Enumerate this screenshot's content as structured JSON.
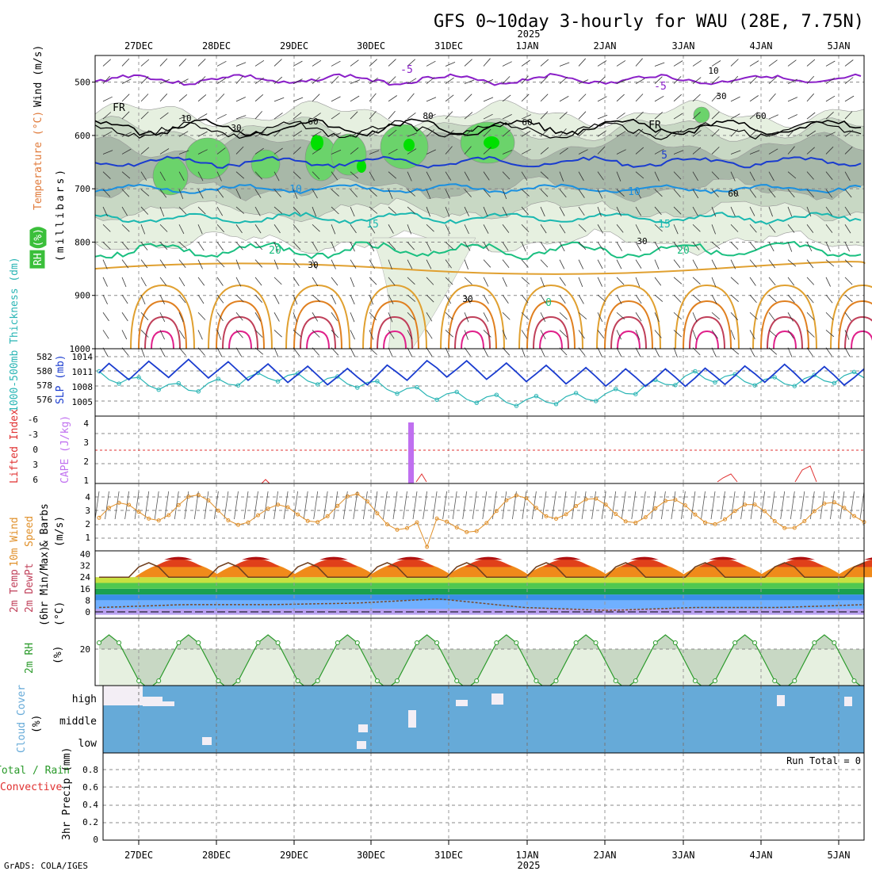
{
  "title": "GFS 0~10day 3-hourly for WAU (28E, 7.75N)",
  "credit": "GrADS: COLA/IGES",
  "year_label": "2025",
  "run_total_text": "Run Total = 0",
  "date_labels": [
    "27DEC",
    "28DEC",
    "29DEC",
    "30DEC",
    "31DEC",
    "1JAN",
    "2JAN",
    "3JAN",
    "4JAN",
    "5JAN"
  ],
  "panels": {
    "upper_air": {
      "ylabel_parts": [
        "RH (%)",
        "Temperature (°C)",
        "Wind (m/s)"
      ],
      "axis_unit": "(millibars)",
      "levels": [
        "500",
        "600",
        "700",
        "800",
        "900",
        "1000"
      ],
      "temp_labels": [
        "-5",
        "-5",
        "FR",
        "FR",
        "5",
        "10",
        "10",
        "15",
        "15",
        "20",
        "20",
        "0"
      ],
      "rh_labels": [
        "10",
        "30",
        "10",
        "30",
        "60",
        "60",
        "30",
        "60",
        "30",
        "80",
        "30",
        "60"
      ]
    },
    "slp": {
      "ylabel_left": "1000-500mb Thickness (dm)",
      "ylabel_right": "SLP (mb)",
      "left_ticks": [
        "582",
        "580",
        "578",
        "576"
      ],
      "right_ticks": [
        "1014",
        "1011",
        "1008",
        "1005"
      ]
    },
    "cape": {
      "ylabel_left": "Lifted Index",
      "ylabel_right": "CAPE (J/kg)",
      "left_ticks": [
        "-6",
        "-3",
        "0",
        "3",
        "6"
      ],
      "right_ticks": [
        "4",
        "3",
        "2",
        "1"
      ]
    },
    "wind10": {
      "ylabel": [
        "10m Wind",
        "Speed",
        "& Barbs",
        "(m/s)"
      ],
      "ticks": [
        "4",
        "3",
        "2",
        "1"
      ]
    },
    "temp2m": {
      "ylabel": [
        "2m Temp",
        "2m DewPt",
        "(6hr Min/Max)",
        "(°C)"
      ],
      "ticks": [
        "40",
        "32",
        "24",
        "16",
        "8",
        "0"
      ]
    },
    "rh2m": {
      "ylabel": [
        "2m RH",
        "(%)"
      ],
      "ticks": [
        "20"
      ]
    },
    "cloud": {
      "ylabel": [
        "Cloud Cover",
        "(%)"
      ],
      "rows": [
        "high",
        "middle",
        "low"
      ]
    },
    "precip": {
      "ylabel": [
        "Total / Rain",
        "Convective",
        "3hr Precip (mm)"
      ],
      "ticks": [
        "0.8",
        "0.6",
        "0.4",
        "0.2",
        "0"
      ]
    }
  },
  "colors": {
    "rh_light": "#e6f0e0",
    "rh_mid": "#c8d8c4",
    "rh_dark": "#a8b8a8",
    "rh_green": "#6bd36b",
    "rh_bright": "#00e000",
    "slp": "#1a3ccf",
    "thickness": "#2ab5b5",
    "cape": "#c070f0",
    "li": "#e03030",
    "wind": "#e0902a",
    "rh2m": "#2a9a2a",
    "cloud_bg": "#66aad8",
    "cloud_gray": "#dddddd"
  },
  "chart_data": {
    "type": "line",
    "x": [
      "27DEC",
      "28DEC",
      "29DEC",
      "30DEC",
      "31DEC",
      "1JAN",
      "2JAN",
      "3JAN",
      "4JAN",
      "5JAN"
    ],
    "series": [
      {
        "name": "SLP (mb)",
        "values": [
          1011,
          1012,
          1011,
          1010,
          1012,
          1011,
          1010,
          1010,
          1011,
          1010
        ]
      },
      {
        "name": "1000-500mb Thickness (dm)",
        "values": [
          580,
          578,
          580,
          579,
          577,
          576,
          577,
          580,
          579,
          580
        ]
      },
      {
        "name": "10m Wind Speed (m/s)",
        "values": [
          2.5,
          3.5,
          2.5,
          3.5,
          1.5,
          3.5,
          3.0,
          3.0,
          2.5,
          3.0
        ]
      },
      {
        "name": "2m Temp (°C)",
        "values": [
          33,
          33,
          33,
          33,
          33,
          33,
          33,
          34,
          36,
          34
        ]
      },
      {
        "name": "2m DewPt (°C)",
        "values": [
          3,
          5,
          5,
          6,
          9,
          3,
          1,
          3,
          3,
          5
        ]
      }
    ],
    "ylim_temp": [
      0,
      40
    ],
    "ylim_slp": [
      1005,
      1014
    ]
  }
}
